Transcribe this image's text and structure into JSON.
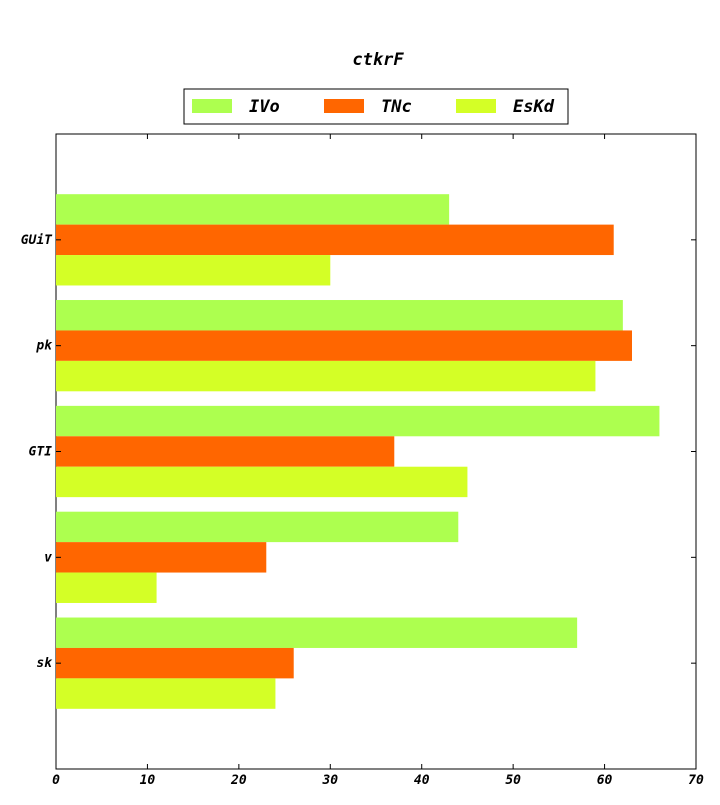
{
  "chart_data": {
    "type": "bar",
    "orientation": "horizontal",
    "title": "ctkrF",
    "xlabel": "",
    "ylabel": "",
    "categories": [
      "GUiT",
      "pk",
      "GTI",
      "v",
      "sk"
    ],
    "series": [
      {
        "name": "IVo",
        "color": "#adff4f",
        "values": [
          43,
          62,
          66,
          44,
          57
        ]
      },
      {
        "name": "TNc",
        "color": "#ff6600",
        "values": [
          61,
          63,
          37,
          23,
          26
        ]
      },
      {
        "name": "EsKd",
        "color": "#d4ff26",
        "values": [
          30,
          59,
          45,
          11,
          24
        ]
      }
    ],
    "xlim": [
      0,
      70
    ],
    "xticks": [
      0,
      10,
      20,
      30,
      40,
      50,
      60,
      70
    ],
    "grid": false,
    "legend_position": "top-center"
  }
}
